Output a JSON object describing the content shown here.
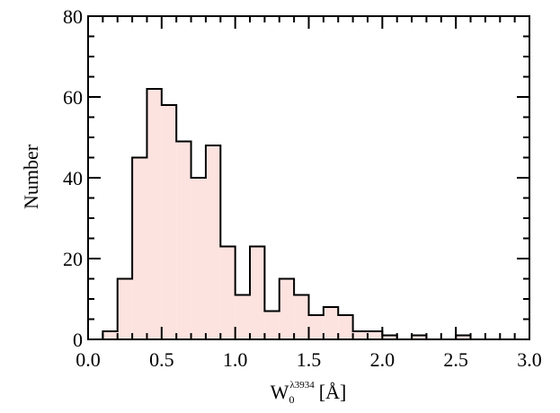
{
  "chart_data": {
    "type": "bar",
    "subtype": "histogram",
    "ylabel": "Number",
    "xlabel": {
      "main": "W",
      "subscript": "0",
      "superscript": "λ3934",
      "unit": "[Å]"
    },
    "xlim": [
      0.0,
      3.0
    ],
    "ylim": [
      0,
      80
    ],
    "xticks": [
      "0.0",
      "0.5",
      "1.0",
      "1.5",
      "2.0",
      "2.5",
      "3.0"
    ],
    "yticks": [
      "0",
      "20",
      "40",
      "60",
      "80"
    ],
    "bin_width": 0.1,
    "bins": [
      {
        "x0": 0.1,
        "x1": 0.2,
        "value": 2
      },
      {
        "x0": 0.2,
        "x1": 0.3,
        "value": 15
      },
      {
        "x0": 0.3,
        "x1": 0.4,
        "value": 45
      },
      {
        "x0": 0.4,
        "x1": 0.5,
        "value": 62
      },
      {
        "x0": 0.5,
        "x1": 0.6,
        "value": 58
      },
      {
        "x0": 0.6,
        "x1": 0.7,
        "value": 49
      },
      {
        "x0": 0.7,
        "x1": 0.8,
        "value": 40
      },
      {
        "x0": 0.8,
        "x1": 0.9,
        "value": 48
      },
      {
        "x0": 0.9,
        "x1": 1.0,
        "value": 23
      },
      {
        "x0": 1.0,
        "x1": 1.1,
        "value": 11
      },
      {
        "x0": 1.1,
        "x1": 1.2,
        "value": 23
      },
      {
        "x0": 1.2,
        "x1": 1.3,
        "value": 7
      },
      {
        "x0": 1.3,
        "x1": 1.4,
        "value": 15
      },
      {
        "x0": 1.4,
        "x1": 1.5,
        "value": 11
      },
      {
        "x0": 1.5,
        "x1": 1.6,
        "value": 6
      },
      {
        "x0": 1.6,
        "x1": 1.7,
        "value": 8
      },
      {
        "x0": 1.7,
        "x1": 1.8,
        "value": 6
      },
      {
        "x0": 1.8,
        "x1": 1.9,
        "value": 2
      },
      {
        "x0": 1.9,
        "x1": 2.0,
        "value": 2
      },
      {
        "x0": 2.0,
        "x1": 2.1,
        "value": 1
      },
      {
        "x0": 2.1,
        "x1": 2.2,
        "value": 0
      },
      {
        "x0": 2.2,
        "x1": 2.3,
        "value": 1
      },
      {
        "x0": 2.3,
        "x1": 2.4,
        "value": 0
      },
      {
        "x0": 2.4,
        "x1": 2.5,
        "value": 0
      },
      {
        "x0": 2.5,
        "x1": 2.6,
        "value": 1
      }
    ],
    "fill_color": "#fde3df",
    "edge_color": "#000000",
    "grid": false,
    "legend": "none"
  }
}
